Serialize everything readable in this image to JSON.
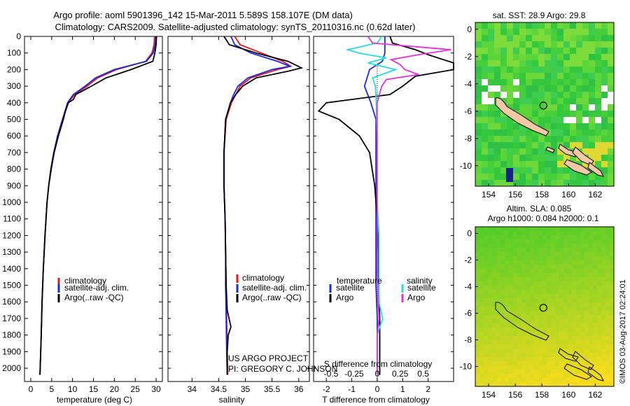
{
  "header": {
    "title_line1": "Argo profile: aoml 5901396_142 15-Mar-2011 5.589S 158.107E (DM data)",
    "title_line2": "Climatology: CARS2009. Satellite-adjusted climatology: synTS_20110316.nc (0.62d later)"
  },
  "colors": {
    "climatology": "#e8141e",
    "satellite": "#1428e6",
    "argo": "#000000",
    "salinity_satellite": "#22dde8",
    "salinity_argo": "#e830d8"
  },
  "project": {
    "line1": "US ARGO PROJECT",
    "line2": "PI: GREGORY C. JOHNSON"
  },
  "stamp": "©IMOS 03-Aug-2017 02:24:01",
  "chart_data": [
    {
      "type": "line",
      "id": "temperature",
      "xlabel": "temperature (deg C)",
      "ylabel": "",
      "xlim": [
        -1.5,
        31.5
      ],
      "ylim": [
        2080,
        0
      ],
      "xticks": [
        "0",
        "5",
        "10",
        "15",
        "20",
        "25",
        "30"
      ],
      "xtick_values": [
        0,
        5,
        10,
        15,
        20,
        25,
        30
      ],
      "yticks": [
        "0",
        "100",
        "200",
        "300",
        "400",
        "500",
        "600",
        "700",
        "800",
        "900",
        "1000",
        "1100",
        "1200",
        "1300",
        "1400",
        "1500",
        "1600",
        "1700",
        "1800",
        "1900",
        "2000"
      ],
      "ytick_values": [
        0,
        100,
        200,
        300,
        400,
        500,
        600,
        700,
        800,
        900,
        1000,
        1100,
        1200,
        1300,
        1400,
        1500,
        1600,
        1700,
        1800,
        1900,
        2000
      ],
      "legend": [
        "climatology",
        "satellite-adj. clim.",
        "Argo(..raw -QC)"
      ],
      "series": [
        {
          "name": "climatology",
          "depth": [
            0,
            50,
            100,
            150,
            200,
            250,
            300,
            350,
            400,
            500,
            600,
            700,
            800,
            900,
            1000,
            1200,
            1400,
            1600,
            1800,
            2040
          ],
          "values": [
            29.6,
            29.5,
            29.0,
            27.5,
            20.5,
            16.0,
            13.5,
            10.5,
            9.0,
            7.6,
            6.4,
            5.5,
            4.8,
            4.3,
            3.9,
            3.4,
            3.0,
            2.7,
            2.5,
            2.2
          ]
        },
        {
          "name": "satellite-adj. clim.",
          "depth": [
            0,
            50,
            100,
            150,
            200,
            250,
            300,
            350,
            400,
            500,
            600,
            700,
            800,
            900,
            1000,
            1200,
            1400,
            1600,
            1800,
            2040
          ],
          "values": [
            29.9,
            29.8,
            29.3,
            27.7,
            20.0,
            15.5,
            13.0,
            10.2,
            8.8,
            7.6,
            6.4,
            5.5,
            4.8,
            4.3,
            3.9,
            3.4,
            3.0,
            2.7,
            2.5,
            2.2
          ]
        },
        {
          "name": "Argo(..raw -QC)",
          "depth": [
            0,
            50,
            100,
            150,
            200,
            250,
            300,
            350,
            380,
            400,
            450,
            500,
            600,
            700,
            800,
            900,
            1000,
            1200,
            1400,
            1600,
            1800,
            2040
          ],
          "values": [
            30.1,
            30.0,
            29.7,
            29.2,
            24.0,
            18.0,
            14.5,
            10.8,
            10.2,
            9.0,
            8.3,
            7.8,
            6.6,
            5.6,
            4.9,
            4.3,
            3.9,
            3.4,
            3.0,
            2.7,
            2.5,
            2.2
          ]
        }
      ]
    },
    {
      "type": "line",
      "id": "salinity",
      "xlabel": "salinity",
      "ylabel": "",
      "xlim": [
        33.55,
        36.2
      ],
      "ylim": [
        2080,
        0
      ],
      "xticks": [
        "34",
        "34.5",
        "35",
        "35.5",
        "36"
      ],
      "xtick_values": [
        34,
        34.5,
        35,
        35.5,
        36
      ],
      "legend": [
        "climatology",
        "satellite-adj. clim.",
        "Argo(..raw -QC)"
      ],
      "series": [
        {
          "name": "climatology",
          "depth": [
            0,
            50,
            100,
            150,
            180,
            200,
            250,
            300,
            350,
            400,
            500,
            700,
            900,
            1100,
            1300,
            1500,
            1700,
            1900,
            2040
          ],
          "values": [
            34.8,
            34.9,
            35.3,
            35.7,
            35.85,
            35.6,
            35.1,
            34.9,
            34.82,
            34.74,
            34.64,
            34.6,
            34.6,
            34.62,
            34.63,
            34.64,
            34.65,
            34.66,
            34.67
          ]
        },
        {
          "name": "satellite-adj. clim.",
          "depth": [
            0,
            50,
            100,
            150,
            180,
            200,
            250,
            300,
            350,
            400,
            500,
            700,
            900,
            1100,
            1300,
            1500,
            1700,
            1900,
            2040
          ],
          "values": [
            34.73,
            34.8,
            35.1,
            35.6,
            35.83,
            35.5,
            35.05,
            34.86,
            34.78,
            34.72,
            34.63,
            34.6,
            34.6,
            34.62,
            34.63,
            34.63,
            34.64,
            34.65,
            34.66
          ]
        },
        {
          "name": "Argo(..raw -QC)",
          "depth": [
            0,
            50,
            100,
            150,
            190,
            210,
            250,
            300,
            350,
            400,
            500,
            700,
            900,
            1100,
            1300,
            1500,
            1650,
            1750,
            1800,
            1900,
            2040
          ],
          "values": [
            34.6,
            34.7,
            35.2,
            35.8,
            36.05,
            35.8,
            35.2,
            34.95,
            34.82,
            34.72,
            34.63,
            34.6,
            34.6,
            34.62,
            34.63,
            34.64,
            34.66,
            34.73,
            34.68,
            34.66,
            34.66
          ]
        }
      ]
    },
    {
      "type": "line",
      "id": "differences",
      "xlabel": "T difference from climatology",
      "x2label": "S difference from climatology",
      "xlim": [
        -2.5,
        3.0
      ],
      "ylim": [
        2080,
        0
      ],
      "xticks": [
        "-2",
        "-1",
        "0",
        "1",
        "2"
      ],
      "xtick_values": [
        -2,
        -1,
        0,
        1,
        2
      ],
      "x2ticks": [
        "-0.5",
        "-0.25",
        "0",
        "0.25",
        "0.5"
      ],
      "x2tick_values": [
        -0.5,
        -0.25,
        0,
        0.25,
        0.5
      ],
      "legend_headers": [
        "temperature",
        "salinity"
      ],
      "legend": [
        "satellite",
        "Argo",
        "satellite",
        "Argo"
      ],
      "series": [
        {
          "name": "T satellite",
          "depth": [
            0,
            50,
            100,
            150,
            200,
            300,
            400,
            500,
            700,
            900,
            1100,
            1300,
            1500,
            1700,
            1900,
            2040
          ],
          "values": [
            0.3,
            0.3,
            0.3,
            0.2,
            -0.3,
            -0.5,
            -0.25,
            -0.05,
            -0.05,
            -0.05,
            -0.05,
            -0.05,
            -0.05,
            0.0,
            0.0,
            0.0
          ]
        },
        {
          "name": "T Argo",
          "depth": [
            0,
            40,
            80,
            110,
            160,
            200,
            240,
            300,
            350,
            400,
            450,
            500,
            600,
            700,
            900,
            1100,
            1300,
            1500,
            1700,
            1900,
            2040
          ],
          "values": [
            0.5,
            0.6,
            1.5,
            2.0,
            3.0,
            3.0,
            1.5,
            1.0,
            0.5,
            -2.0,
            -2.3,
            -1.5,
            -0.7,
            -0.3,
            -0.1,
            0.0,
            0.05,
            0.05,
            0.1,
            0.1,
            0.1
          ]
        },
        {
          "name": "S satellite",
          "depth": [
            0,
            40,
            80,
            100,
            130,
            160,
            200,
            250,
            300,
            400,
            600,
            800,
            1000,
            1200,
            1400,
            1600,
            1700,
            1800,
            1900,
            2040
          ],
          "values": [
            0.05,
            0.0,
            -0.32,
            -0.2,
            0.1,
            -0.1,
            0.2,
            -0.05,
            -0.02,
            -0.01,
            0.0,
            0.0,
            0.0,
            0.02,
            0.02,
            0.02,
            0.06,
            0.0,
            0.0,
            0.0
          ]
        },
        {
          "name": "S Argo",
          "depth": [
            0,
            40,
            80,
            110,
            140,
            170,
            200,
            230,
            260,
            300,
            400,
            600,
            800,
            1000,
            1200,
            1400,
            1600,
            1700,
            1800,
            1900,
            2040
          ],
          "values": [
            -0.1,
            -0.05,
            0.8,
            0.45,
            0.15,
            0.25,
            0.3,
            0.45,
            0.1,
            0.05,
            0.0,
            0.0,
            0.0,
            0.0,
            0.0,
            0.0,
            0.01,
            0.02,
            0.0,
            0.0,
            0.0
          ]
        }
      ]
    },
    {
      "type": "heatmap",
      "id": "sst_map",
      "title": "sat. SST: 28.9 Argo: 29.8",
      "xlim": [
        153,
        163.4
      ],
      "ylim": [
        -11.5,
        0.5
      ],
      "xticks": [
        "154",
        "156",
        "158",
        "160",
        "162"
      ],
      "xtick_values": [
        154,
        156,
        158,
        160,
        162
      ],
      "yticks": [
        "0",
        "-2",
        "-4",
        "-6",
        "-8",
        "-10"
      ],
      "ytick_values": [
        0,
        -2,
        -4,
        -6,
        -8,
        -10
      ],
      "profile_location": [
        158.107,
        -5.589
      ]
    },
    {
      "type": "heatmap",
      "id": "sla_map",
      "title_line1": "Altim. SLA: 0.085",
      "title_line2": "Argo h1000: 0.084 h2000: 0.1",
      "xlim": [
        153,
        163.4
      ],
      "ylim": [
        -11.5,
        0.5
      ],
      "xticks": [
        "154",
        "156",
        "158",
        "160",
        "162"
      ],
      "xtick_values": [
        154,
        156,
        158,
        160,
        162
      ],
      "yticks": [
        "0",
        "-2",
        "-4",
        "-6",
        "-8",
        "-10"
      ],
      "ytick_values": [
        0,
        -2,
        -4,
        -6,
        -8,
        -10
      ],
      "profile_location": [
        158.107,
        -5.589
      ]
    }
  ]
}
